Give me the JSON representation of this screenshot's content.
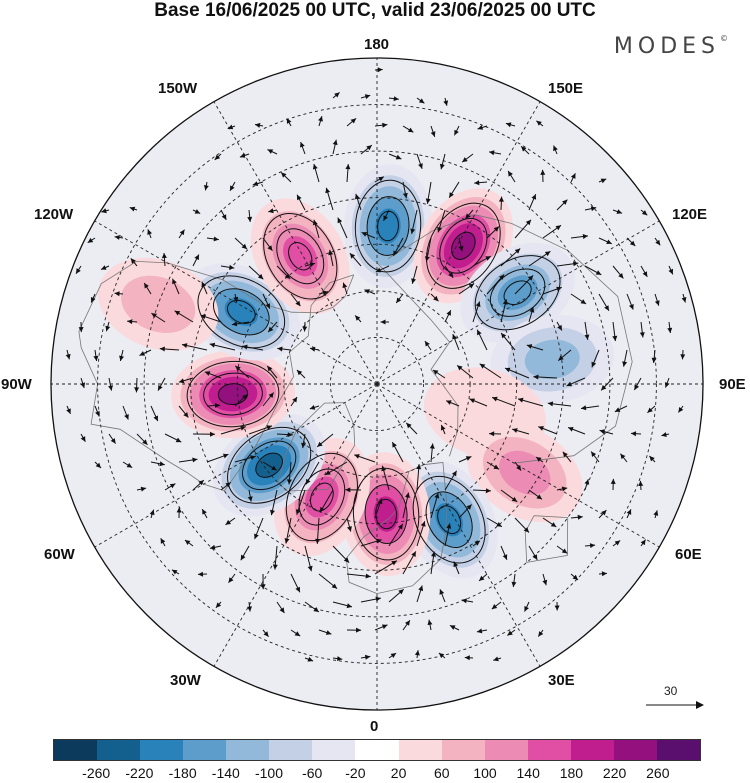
{
  "title": "Base 16/06/2025 00 UTC, valid 23/06/2025 00 UTC",
  "brand": "MODES",
  "brand_mark": "©",
  "longitude_labels": {
    "top": "180",
    "bottom": "0",
    "left": "90W",
    "right": "90E",
    "upper_left_1": "150W",
    "upper_left_2": "120W",
    "upper_right_1": "150E",
    "upper_right_2": "120E",
    "lower_left_1": "60W",
    "lower_left_2": "30W",
    "lower_right_1": "60E",
    "lower_right_2": "30E"
  },
  "reference_vector": {
    "label": "30",
    "value": 30
  },
  "colorbar": {
    "colors": [
      "#0b3a5c",
      "#13608f",
      "#2a82bb",
      "#5d9dcb",
      "#93b9da",
      "#c4d0e6",
      "#e6e6f2",
      "#ffffff",
      "#fbdadd",
      "#f3b3c1",
      "#ec8cb4",
      "#e04fa4",
      "#c01d8f",
      "#93107e",
      "#5a0f6e"
    ],
    "labels": [
      "-260",
      "-220",
      "-180",
      "-140",
      "-100",
      "-60",
      "-20",
      "20",
      "60",
      "100",
      "140",
      "180",
      "220",
      "260"
    ]
  },
  "anomaly_centers": [
    {
      "lon": 176,
      "colat": 34,
      "value": -200
    },
    {
      "lon": 148,
      "colat": 35,
      "value": 220
    },
    {
      "lon": 123,
      "colat": 36,
      "value": -150
    },
    {
      "lon": 98,
      "colat": 38,
      "value": -100
    },
    {
      "lon": 75,
      "colat": 24,
      "value": 50
    },
    {
      "lon": 59,
      "colat": 37,
      "value": 100
    },
    {
      "lon": 28,
      "colat": 33,
      "value": -190
    },
    {
      "lon": 4,
      "colat": 28,
      "value": 210
    },
    {
      "lon": -26,
      "colat": 27,
      "value": 160
    },
    {
      "lon": -53,
      "colat": 29,
      "value": -220
    },
    {
      "lon": -86,
      "colat": 31,
      "value": 250
    },
    {
      "lon": -118,
      "colat": 33,
      "value": -210
    },
    {
      "lon": -149,
      "colat": 32,
      "value": 170
    },
    {
      "lon": -110,
      "colat": 50,
      "value": 60
    }
  ]
}
